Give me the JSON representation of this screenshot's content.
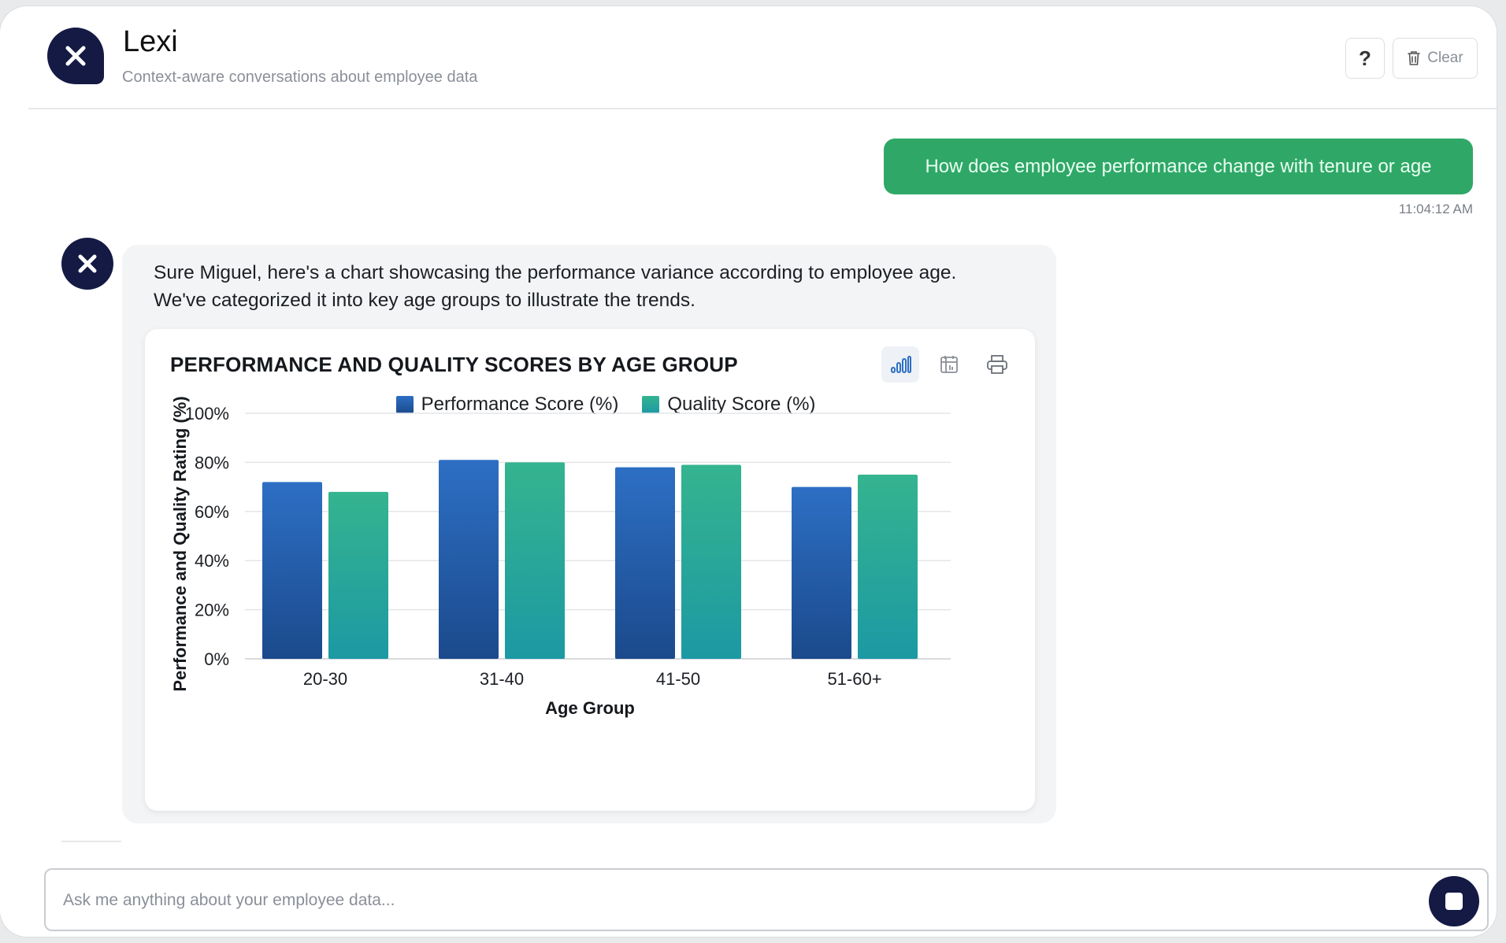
{
  "app": {
    "title": "Lexi",
    "subtitle": "Context-aware conversations about employee data",
    "brand_color": "#141a44"
  },
  "header": {
    "help_label": "?",
    "clear_label": "Clear"
  },
  "conversation": {
    "user_message": {
      "text": "How does employee performance change with tenure or age",
      "timestamp": "11:04:12 AM",
      "bubble_color": "#2fa867"
    },
    "assistant_message": {
      "text_line1": "Sure Miguel, here's a chart showcasing the performance variance according to employee age.",
      "text_line2": "We've categorized it into key age groups to illustrate the trends."
    }
  },
  "chart_toolbar": {
    "icons": [
      "bar-chart-icon",
      "table-icon",
      "print-icon"
    ]
  },
  "chart_data": {
    "type": "bar",
    "title": "PERFORMANCE AND QUALITY SCORES BY AGE GROUP",
    "xlabel": "Age Group",
    "ylabel": "Performance and Quality Rating (%)",
    "categories": [
      "20-30",
      "31-40",
      "41-50",
      "51-60+"
    ],
    "series": [
      {
        "name": "Performance Score (%)",
        "values": [
          72,
          81,
          78,
          70
        ],
        "color_top": "#2d6fc4",
        "color_bottom": "#1b4a8c"
      },
      {
        "name": "Quality Score (%)",
        "values": [
          68,
          80,
          79,
          75
        ],
        "color_top": "#35b48f",
        "color_bottom": "#1c99a3"
      }
    ],
    "ylim": [
      0,
      100
    ],
    "yticks": [
      "0%",
      "20%",
      "40%",
      "60%",
      "80%",
      "100%"
    ],
    "ytick_values": [
      0,
      20,
      40,
      60,
      80,
      100
    ],
    "grid": true,
    "legend_position": "top-center"
  },
  "input": {
    "placeholder": "Ask me anything about your employee data...",
    "value": ""
  }
}
